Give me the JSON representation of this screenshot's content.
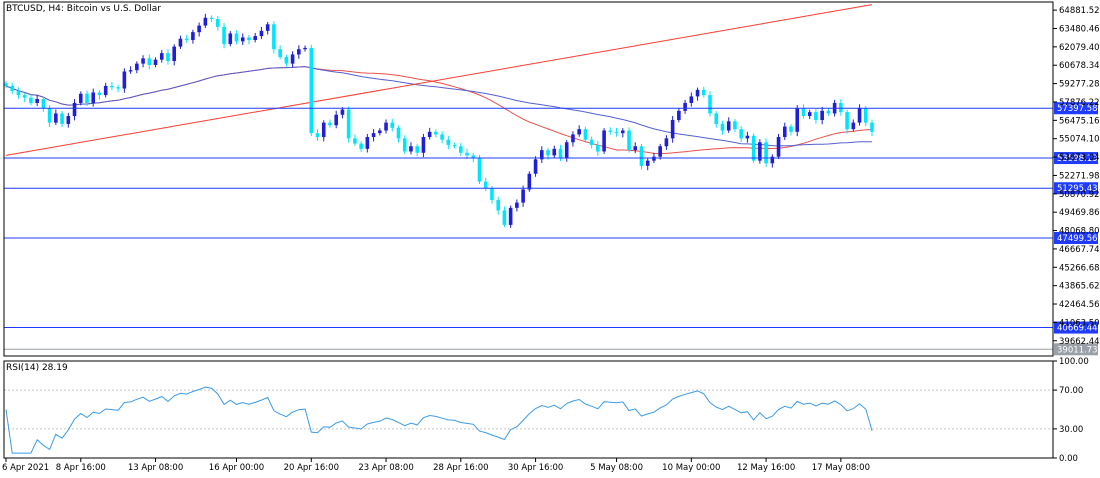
{
  "chart_title": "BTCUSD, H4:  Bitcoin vs U.S. Dollar",
  "indicator_label": "RSI(14) 28.19",
  "colors": {
    "bull": "#1f1fd6",
    "bear": "#00e5ff",
    "grid": "#c8c8c8",
    "axis": "#000000",
    "hline": "#1f3bff",
    "trendline": "#ff3b30",
    "ma_red": "#e8504a",
    "ma_blue": "#5560d0",
    "rsi": "#3c9be6",
    "current_price_box": "#9aa0a8"
  },
  "chart_data": [
    {
      "type": "candlestick",
      "title": "BTCUSD, H4:  Bitcoin vs U.S. Dollar",
      "ylim": [
        38500,
        65500
      ],
      "y_ticks": [
        "64881.52",
        "63480.46",
        "62079.40",
        "60678.34",
        "59277.28",
        "57876.22",
        "56475.16",
        "55074.10",
        "53673.04",
        "52271.98",
        "50870.92",
        "49469.86",
        "48068.80",
        "46667.74",
        "45266.68",
        "43865.62",
        "42464.56",
        "41063.50",
        "39662.44"
      ],
      "x_ticks": [
        "6 Apr 2021",
        "8 Apr 16:00",
        "13 Apr 08:00",
        "16 Apr 00:00",
        "20 Apr 16:00",
        "23 Apr 08:00",
        "28 Apr 16:00",
        "30 Apr 16:00",
        "5 May 08:00",
        "10 May 00:00",
        "12 May 16:00",
        "17 May 08:00"
      ],
      "horizontal_levels": [
        {
          "value": 57397.58,
          "label": "57397.58"
        },
        {
          "value": 53598.13,
          "label": "53598.13"
        },
        {
          "value": 51295.43,
          "label": "51295.43"
        },
        {
          "value": 47499.56,
          "label": "47499.56"
        },
        {
          "value": 40669.44,
          "label": "40669.44"
        }
      ],
      "current_price": {
        "value": 39011.73,
        "label": "39011.73"
      },
      "trendline": {
        "start": {
          "index": 0,
          "value": 53800
        },
        "end": {
          "index": 139,
          "value": 65300
        }
      },
      "closes": [
        59100,
        58700,
        58400,
        58200,
        57800,
        58100,
        57400,
        56300,
        57000,
        56200,
        56800,
        57800,
        58500,
        57800,
        58600,
        58400,
        59100,
        59000,
        58900,
        60200,
        60300,
        60800,
        61200,
        60700,
        61100,
        61600,
        61000,
        62100,
        62700,
        62600,
        63200,
        63700,
        64300,
        64200,
        63600,
        62300,
        63100,
        62500,
        62800,
        62600,
        62900,
        63300,
        63800,
        61900,
        61300,
        60800,
        61500,
        61900,
        62000,
        55500,
        55200,
        56300,
        56100,
        56900,
        57300,
        55100,
        54700,
        54300,
        55200,
        55500,
        55700,
        56300,
        55900,
        55100,
        54100,
        54500,
        54000,
        55200,
        55600,
        55400,
        55000,
        54600,
        54500,
        54000,
        53800,
        53600,
        51800,
        51300,
        50400,
        49600,
        48500,
        49800,
        50200,
        51200,
        52400,
        53500,
        54200,
        53800,
        54300,
        53600,
        54800,
        55400,
        55800,
        55000,
        54600,
        54100,
        55700,
        55600,
        55500,
        55700,
        54200,
        54500,
        53000,
        53400,
        53700,
        54500,
        55100,
        56500,
        57200,
        57800,
        58300,
        58800,
        58400,
        57000,
        56200,
        55700,
        56400,
        55800,
        55100,
        55300,
        53400,
        54800,
        53200,
        53700,
        55200,
        56000,
        55600,
        57400,
        56800,
        57100,
        56500,
        57200,
        57000,
        57800,
        57100,
        55800,
        56300,
        57400,
        56300,
        55600
      ],
      "rsi_range": [
        0,
        100
      ],
      "rsi_ticks": [
        "100.00",
        "70.00",
        "30.00",
        "0.00"
      ],
      "rsi_last": 28.19
    }
  ]
}
